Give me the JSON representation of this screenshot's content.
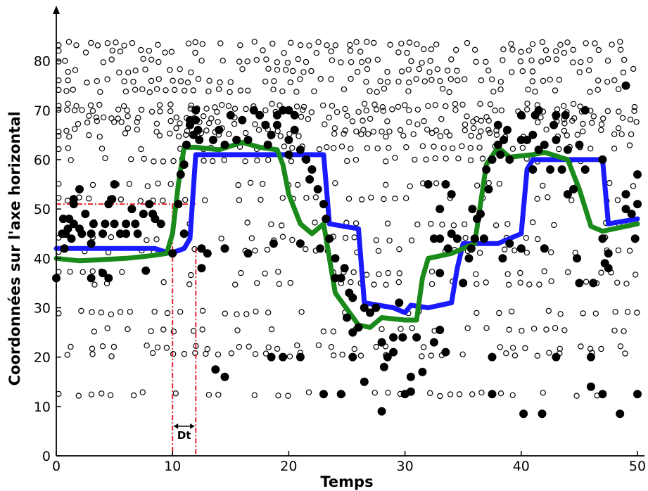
{
  "chart_data": {
    "type": "line",
    "title": "",
    "xlabel": "Temps",
    "ylabel": "Coordonnées sur l'axe horizontal",
    "xlim": [
      0,
      50
    ],
    "ylim": [
      0,
      85
    ],
    "xticks": [
      0,
      10,
      20,
      30,
      40,
      50
    ],
    "yticks": [
      0,
      10,
      20,
      30,
      40,
      50,
      60,
      70,
      80
    ],
    "grid": false,
    "series": [
      {
        "color": "#1a1aff",
        "x": [
          0,
          8.5,
          9.8,
          11,
          11.5,
          12,
          18,
          23,
          23.5,
          26,
          26.5,
          29,
          30,
          30.5,
          32,
          34,
          34.5,
          35,
          38,
          40,
          40.5,
          41,
          47,
          47.5,
          50
        ],
        "y": [
          42,
          42,
          41,
          42,
          44,
          61,
          61,
          61,
          47,
          46,
          31,
          30,
          29,
          30.5,
          30,
          31,
          38,
          43,
          43,
          45,
          58,
          60,
          60,
          47,
          48
        ]
      },
      {
        "color": "#1a8a1a",
        "x": [
          0,
          2,
          6,
          8,
          9.5,
          10,
          10.5,
          11,
          12,
          14,
          16,
          17.5,
          19,
          19.5,
          20,
          21,
          22,
          23,
          24,
          26,
          27,
          28,
          30,
          31,
          31.5,
          32,
          34,
          36,
          37,
          38,
          39,
          41,
          42,
          44,
          45,
          46,
          47,
          49,
          50
        ],
        "y": [
          40,
          39.5,
          40,
          40.5,
          41,
          45,
          55,
          62.5,
          62.5,
          62,
          63.5,
          62.5,
          62,
          59,
          53,
          47,
          45,
          47,
          33,
          26.5,
          26,
          28,
          27.5,
          27.5,
          36,
          40,
          41,
          43,
          59,
          62.5,
          60.5,
          61,
          61.5,
          60,
          54,
          46.5,
          45.5,
          46.5,
          47
        ]
      }
    ],
    "guide_y": 51,
    "guide_x": [
      10,
      12
    ],
    "annotations": [
      {
        "text": "Dt",
        "x": 11,
        "y": 4
      }
    ],
    "filled_points": [
      [
        0,
        36
      ],
      [
        0.5,
        45
      ],
      [
        0.7,
        42
      ],
      [
        0.6,
        48
      ],
      [
        0.8,
        45
      ],
      [
        1,
        46
      ],
      [
        1.3,
        44
      ],
      [
        1.1,
        48
      ],
      [
        1.5,
        47
      ],
      [
        1.5,
        51
      ],
      [
        1.5,
        52
      ],
      [
        2,
        54
      ],
      [
        2,
        46
      ],
      [
        2.2,
        45
      ],
      [
        2.5,
        49
      ],
      [
        3,
        36
      ],
      [
        3,
        43
      ],
      [
        3,
        45
      ],
      [
        3.2,
        47
      ],
      [
        4,
        37
      ],
      [
        4,
        45
      ],
      [
        4.2,
        47
      ],
      [
        4.5,
        36
      ],
      [
        4.5,
        51
      ],
      [
        4.8,
        52
      ],
      [
        5,
        55
      ],
      [
        5,
        47
      ],
      [
        5.5,
        45
      ],
      [
        6,
        47
      ],
      [
        6,
        45
      ],
      [
        6.5,
        50
      ],
      [
        6.8,
        47
      ],
      [
        7,
        45
      ],
      [
        7.5,
        49
      ],
      [
        8,
        51
      ],
      [
        8.3,
        49
      ],
      [
        8.5,
        48
      ],
      [
        9,
        47
      ],
      [
        7.7,
        37.5
      ],
      [
        10,
        41
      ],
      [
        10.5,
        51
      ],
      [
        10.7,
        57
      ],
      [
        11,
        59
      ],
      [
        11,
        45
      ],
      [
        11.2,
        63
      ],
      [
        11.5,
        67
      ],
      [
        11.5,
        68
      ],
      [
        11.8,
        65
      ],
      [
        12,
        70
      ],
      [
        12.2,
        66
      ],
      [
        12,
        68
      ],
      [
        12.3,
        64
      ],
      [
        12.5,
        42
      ],
      [
        12.5,
        38
      ],
      [
        13,
        41
      ],
      [
        13.5,
        64
      ],
      [
        14,
        66
      ],
      [
        14.5,
        63
      ],
      [
        14.5,
        42
      ],
      [
        15,
        69
      ],
      [
        15.5,
        64
      ],
      [
        16,
        68
      ],
      [
        16.5,
        64
      ],
      [
        16.5,
        41
      ],
      [
        17,
        70
      ],
      [
        17.5,
        69
      ],
      [
        18,
        67
      ],
      [
        18.2,
        63
      ],
      [
        18.5,
        65
      ],
      [
        18.7,
        43
      ],
      [
        19,
        69
      ],
      [
        19.5,
        70
      ],
      [
        19,
        67
      ],
      [
        20,
        70
      ],
      [
        20,
        64
      ],
      [
        20.5,
        69
      ],
      [
        20.5,
        66
      ],
      [
        20,
        61
      ],
      [
        21,
        62
      ],
      [
        21,
        43
      ],
      [
        21.5,
        60
      ],
      [
        21.8,
        56
      ],
      [
        22,
        58
      ],
      [
        22.5,
        54
      ],
      [
        22.7,
        42
      ],
      [
        23,
        51
      ],
      [
        23.2,
        48
      ],
      [
        23.5,
        44
      ],
      [
        24,
        40
      ],
      [
        24,
        36
      ],
      [
        24.5,
        36
      ],
      [
        24.8,
        38
      ],
      [
        25,
        28
      ],
      [
        25.2,
        33
      ],
      [
        25.5,
        32
      ],
      [
        26,
        26
      ],
      [
        26.5,
        30
      ],
      [
        27,
        29
      ],
      [
        27.5,
        30
      ],
      [
        28,
        23
      ],
      [
        28.2,
        18
      ],
      [
        28.5,
        20
      ],
      [
        29,
        24
      ],
      [
        29,
        21
      ],
      [
        29.5,
        31
      ],
      [
        29.8,
        24
      ],
      [
        30,
        12.5
      ],
      [
        30.5,
        13
      ],
      [
        31,
        24
      ],
      [
        31.5,
        17
      ],
      [
        32,
        55
      ],
      [
        32.5,
        44
      ],
      [
        33,
        44
      ],
      [
        33,
        50
      ],
      [
        33,
        37
      ],
      [
        33.5,
        55
      ],
      [
        33.7,
        42
      ],
      [
        34,
        53
      ],
      [
        34,
        45
      ],
      [
        34.5,
        44
      ],
      [
        35,
        35
      ],
      [
        35.5,
        40
      ],
      [
        35.7,
        42
      ],
      [
        35.8,
        50
      ],
      [
        36,
        44
      ],
      [
        36.2,
        48
      ],
      [
        36.5,
        49
      ],
      [
        36.8,
        44
      ],
      [
        37,
        58
      ],
      [
        37.2,
        54
      ],
      [
        37.5,
        60
      ],
      [
        38,
        63
      ],
      [
        38,
        67
      ],
      [
        38.2,
        61
      ],
      [
        38.4,
        40
      ],
      [
        38.5,
        64
      ],
      [
        38.8,
        66
      ],
      [
        39,
        60
      ],
      [
        39,
        43
      ],
      [
        40,
        64
      ],
      [
        40,
        69
      ],
      [
        40,
        42
      ],
      [
        40.2,
        8.5
      ],
      [
        40.5,
        64
      ],
      [
        41,
        65
      ],
      [
        41,
        58
      ],
      [
        41.2,
        69
      ],
      [
        41.5,
        70
      ],
      [
        41.5,
        62
      ],
      [
        41.8,
        8.5
      ],
      [
        42,
        42
      ],
      [
        42,
        63
      ],
      [
        42.5,
        58
      ],
      [
        42.8,
        67
      ],
      [
        43,
        69
      ],
      [
        43,
        64
      ],
      [
        43.5,
        58
      ],
      [
        43.8,
        69
      ],
      [
        44,
        53
      ],
      [
        44,
        62
      ],
      [
        44.5,
        54
      ],
      [
        44.8,
        40
      ],
      [
        45,
        63
      ],
      [
        45,
        35
      ],
      [
        45.5,
        70
      ],
      [
        45.5,
        58
      ],
      [
        46,
        20
      ],
      [
        46.2,
        35
      ],
      [
        47,
        60
      ],
      [
        47,
        12.5
      ],
      [
        47,
        44
      ],
      [
        47.2,
        39
      ],
      [
        47.5,
        41
      ],
      [
        47.5,
        38
      ],
      [
        48.5,
        8.5
      ],
      [
        49,
        75
      ],
      [
        49,
        50
      ],
      [
        49,
        53
      ],
      [
        49.5,
        49
      ],
      [
        49.8,
        44
      ],
      [
        50,
        51
      ],
      [
        50,
        57
      ],
      [
        50,
        12.5
      ],
      [
        13.7,
        17.5
      ],
      [
        14.5,
        16
      ],
      [
        18.5,
        20
      ],
      [
        19.5,
        20
      ],
      [
        21,
        20
      ],
      [
        28,
        9
      ],
      [
        23,
        12.5
      ],
      [
        37.5,
        12.5
      ],
      [
        37.5,
        20
      ],
      [
        43,
        20
      ],
      [
        46,
        14
      ],
      [
        25.5,
        25
      ],
      [
        24.5,
        12.5
      ],
      [
        25.5,
        20
      ],
      [
        26.5,
        15
      ],
      [
        30.5,
        16
      ],
      [
        32.5,
        23
      ],
      [
        33,
        25.5
      ],
      [
        33.5,
        21
      ]
    ]
  }
}
